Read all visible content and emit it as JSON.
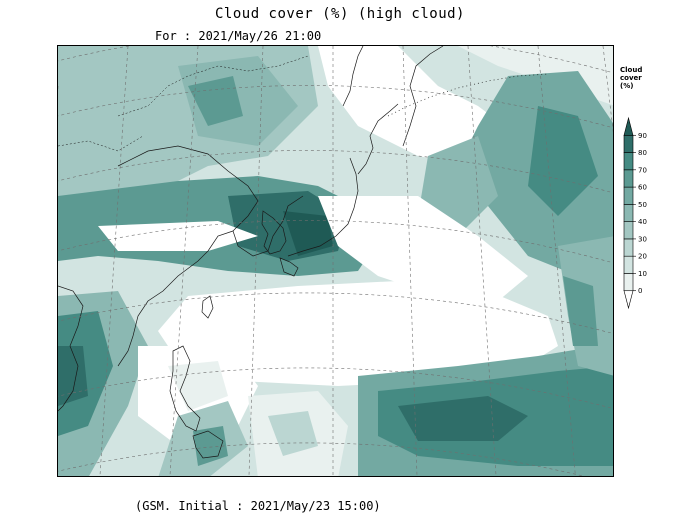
{
  "title": "Cloud cover (%) (high cloud)",
  "valid_time": "For : 2021/May/26 21:00",
  "initial_time": "(GSM. Initial : 2021/May/23 15:00)",
  "legend": {
    "title_lines": [
      "Cloud",
      "cover",
      "(%)"
    ],
    "ticks": [
      "90",
      "80",
      "70",
      "60",
      "50",
      "40",
      "30",
      "20",
      "10",
      "0"
    ],
    "colors": [
      "#ffffff",
      "#e9f1ef",
      "#d2e4e1",
      "#bbd6d2",
      "#a3c7c2",
      "#8bb8b2",
      "#73a9a2",
      "#5c9a92",
      "#458b83",
      "#2f6e69",
      "#1f5a55"
    ]
  },
  "map": {
    "projection": "polar-stereographic",
    "region": "East Asia / Northwest Pacific",
    "field": "high cloud cover (%)"
  }
}
